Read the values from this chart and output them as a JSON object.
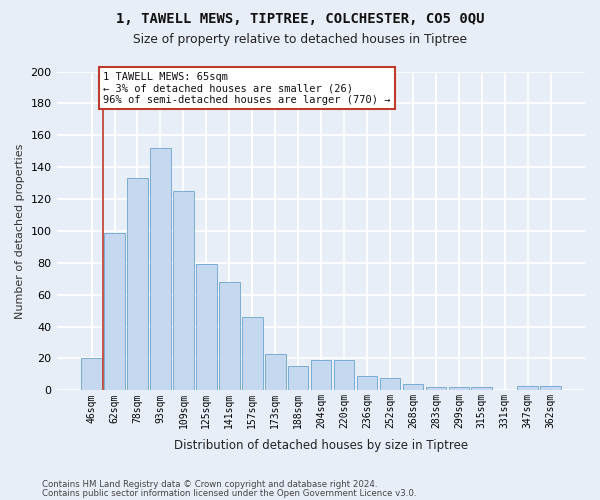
{
  "title1": "1, TAWELL MEWS, TIPTREE, COLCHESTER, CO5 0QU",
  "title2": "Size of property relative to detached houses in Tiptree",
  "xlabel": "Distribution of detached houses by size in Tiptree",
  "ylabel": "Number of detached properties",
  "categories": [
    "46sqm",
    "62sqm",
    "78sqm",
    "93sqm",
    "109sqm",
    "125sqm",
    "141sqm",
    "157sqm",
    "173sqm",
    "188sqm",
    "204sqm",
    "220sqm",
    "236sqm",
    "252sqm",
    "268sqm",
    "283sqm",
    "299sqm",
    "315sqm",
    "331sqm",
    "347sqm",
    "362sqm"
  ],
  "values": [
    20,
    99,
    133,
    152,
    125,
    79,
    68,
    46,
    23,
    15,
    19,
    19,
    9,
    8,
    4,
    2,
    2,
    2,
    0,
    3,
    3
  ],
  "bar_color": "#c5d8f0",
  "bar_edge_color": "#7aadd4",
  "annotation_line1": "1 TAWELL MEWS: 65sqm",
  "annotation_line2": "← 3% of detached houses are smaller (26)",
  "annotation_line3": "96% of semi-detached houses are larger (770) →",
  "vline_x": 0.5,
  "vline_color": "#c0392b",
  "ylim": [
    0,
    200
  ],
  "yticks": [
    0,
    20,
    40,
    60,
    80,
    100,
    120,
    140,
    160,
    180,
    200
  ],
  "footer1": "Contains HM Land Registry data © Crown copyright and database right 2024.",
  "footer2": "Contains public sector information licensed under the Open Government Licence v3.0.",
  "bg_color": "#e8eef8",
  "plot_bg_color": "#e8eef8",
  "grid_color": "#ffffff"
}
